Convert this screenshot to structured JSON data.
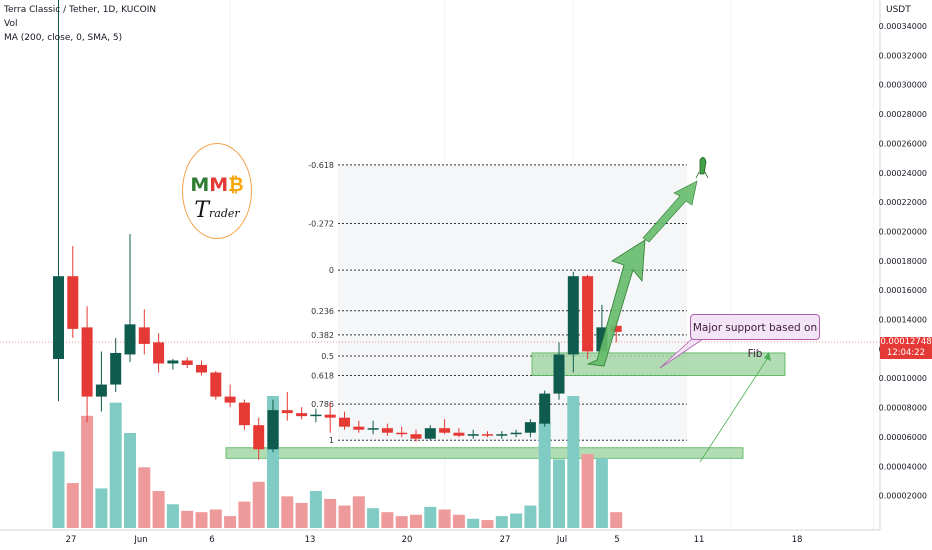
{
  "legend": {
    "symbol": "Terra Classic / Tether, 1D, KUCOIN",
    "volume": "Vol",
    "ma": "MA (200, close, 0, SMA, 5)"
  },
  "price_axis": {
    "title": "USDT",
    "current_price": "0.00012748",
    "countdown": "12:04:22"
  },
  "logo": {
    "line1_a": "M",
    "line1_b": "M",
    "line1_c": "₿",
    "line2_a": "T",
    "line2_b": "rader"
  },
  "annotation": {
    "text": "Major support based on Fib"
  },
  "colors": {
    "up": "#0f5c4e",
    "down": "#e53935",
    "vol_up": "#80cbc4",
    "vol_down": "#ef9a9a",
    "support": "#a5d6a7",
    "arrow": "#66bb6a"
  },
  "chart_data": {
    "type": "candlestick",
    "title": "Terra Classic / Tether, 1D, KUCOIN",
    "ylabel": "USDT",
    "ylim": [
      5e-07,
      3.6e-05
    ],
    "y_ticks": [
      "0.00034000",
      "0.00032000",
      "0.00030000",
      "0.00028000",
      "0.00026000",
      "0.00024000",
      "0.00022000",
      "0.00020000",
      "0.00018000",
      "0.00016000",
      "0.00014000",
      "0.00012000",
      "0.00010000",
      "0.00008000",
      "0.00006000",
      "0.00004000",
      "0.00002000"
    ],
    "x_ticks": [
      "27",
      "Jun",
      "6",
      "13",
      "20",
      "27",
      "Jul",
      "5",
      "11",
      "18"
    ],
    "candles": [
      {
        "o": 0.000107,
        "h": 0.000352,
        "l": 7.9e-05,
        "c": 0.000162
      },
      {
        "o": 0.000162,
        "h": 0.000182,
        "l": 0.000121,
        "c": 0.000127
      },
      {
        "o": 0.000128,
        "h": 0.000142,
        "l": 6.5e-05,
        "c": 8.2e-05
      },
      {
        "o": 8.2e-05,
        "h": 0.000112,
        "l": 7.2e-05,
        "c": 9e-05
      },
      {
        "o": 9e-05,
        "h": 0.000121,
        "l": 8.5e-05,
        "c": 0.000111
      },
      {
        "o": 0.00011,
        "h": 0.00019,
        "l": 0.000105,
        "c": 0.00013
      },
      {
        "o": 0.000128,
        "h": 0.00014,
        "l": 0.00011,
        "c": 0.000117
      },
      {
        "o": 0.000118,
        "h": 0.000124,
        "l": 9.8e-05,
        "c": 0.000104
      },
      {
        "o": 0.000104,
        "h": 0.000107,
        "l": 0.0001,
        "c": 0.000106
      },
      {
        "o": 0.000106,
        "h": 0.000108,
        "l": 0.000101,
        "c": 0.000103
      },
      {
        "o": 0.000103,
        "h": 0.000106,
        "l": 9.6e-05,
        "c": 9.8e-05
      },
      {
        "o": 9.8e-05,
        "h": 9.9e-05,
        "l": 8e-05,
        "c": 8.2e-05
      },
      {
        "o": 8.2e-05,
        "h": 9e-05,
        "l": 7.5e-05,
        "c": 7.8e-05
      },
      {
        "o": 7.8e-05,
        "h": 8e-05,
        "l": 6e-05,
        "c": 6.3e-05
      },
      {
        "o": 6.3e-05,
        "h": 6.8e-05,
        "l": 4e-05,
        "c": 4.7e-05
      },
      {
        "o": 4.7e-05,
        "h": 8e-05,
        "l": 4.5e-05,
        "c": 7.3e-05
      },
      {
        "o": 7.3e-05,
        "h": 8.5e-05,
        "l": 6.6e-05,
        "c": 7.1e-05
      },
      {
        "o": 7.1e-05,
        "h": 7.5e-05,
        "l": 6.7e-05,
        "c": 6.9e-05
      },
      {
        "o": 6.9e-05,
        "h": 7.4e-05,
        "l": 6.5e-05,
        "c": 7e-05
      },
      {
        "o": 7e-05,
        "h": 7.8e-05,
        "l": 5.8e-05,
        "c": 6.8e-05
      },
      {
        "o": 6.8e-05,
        "h": 7.2e-05,
        "l": 6e-05,
        "c": 6.2e-05
      },
      {
        "o": 6.2e-05,
        "h": 6.6e-05,
        "l": 5.8e-05,
        "c": 6e-05
      },
      {
        "o": 6e-05,
        "h": 6.6e-05,
        "l": 5.7e-05,
        "c": 6.1e-05
      },
      {
        "o": 6.1e-05,
        "h": 6.4e-05,
        "l": 5.6e-05,
        "c": 5.8e-05
      },
      {
        "o": 5.8e-05,
        "h": 6.2e-05,
        "l": 5.5e-05,
        "c": 5.7e-05
      },
      {
        "o": 5.7e-05,
        "h": 6e-05,
        "l": 5.2e-05,
        "c": 5.4e-05
      },
      {
        "o": 5.4e-05,
        "h": 6.3e-05,
        "l": 5.3e-05,
        "c": 6.1e-05
      },
      {
        "o": 6.1e-05,
        "h": 6.7e-05,
        "l": 5.7e-05,
        "c": 5.8e-05
      },
      {
        "o": 5.8e-05,
        "h": 6.1e-05,
        "l": 5.5e-05,
        "c": 5.6e-05
      },
      {
        "o": 5.6e-05,
        "h": 6e-05,
        "l": 5.4e-05,
        "c": 5.7e-05
      },
      {
        "o": 5.7e-05,
        "h": 5.9e-05,
        "l": 5.5e-05,
        "c": 5.6e-05
      },
      {
        "o": 5.6e-05,
        "h": 5.9e-05,
        "l": 5.4e-05,
        "c": 5.7e-05
      },
      {
        "o": 5.7e-05,
        "h": 6e-05,
        "l": 5.5e-05,
        "c": 5.8e-05
      },
      {
        "o": 5.8e-05,
        "h": 6.7e-05,
        "l": 5.5e-05,
        "c": 6.5e-05
      },
      {
        "o": 6.4e-05,
        "h": 8.6e-05,
        "l": 6.2e-05,
        "c": 8.4e-05
      },
      {
        "o": 8.4e-05,
        "h": 0.000118,
        "l": 8e-05,
        "c": 0.00011
      },
      {
        "o": 0.00011,
        "h": 0.000165,
        "l": 9.8e-05,
        "c": 0.000162
      },
      {
        "o": 0.000162,
        "h": 0.000163,
        "l": 0.000107,
        "c": 0.000112
      },
      {
        "o": 0.000112,
        "h": 0.000143,
        "l": 0.000108,
        "c": 0.000128
      },
      {
        "o": 0.000129,
        "h": 0.000133,
        "l": 0.000118,
        "c": 0.000125
      }
    ],
    "volume_panel": {
      "ylim": [
        0,
        100
      ],
      "values": [
        58,
        34,
        85,
        30,
        95,
        72,
        46,
        28,
        18,
        13,
        12,
        14,
        9,
        20,
        35,
        100,
        24,
        19,
        28,
        22,
        17,
        24,
        15,
        12,
        9,
        10,
        16,
        14,
        10,
        7,
        6,
        9,
        11,
        17,
        80,
        52,
        100,
        56,
        53,
        12
      ]
    },
    "fibonacci": [
      {
        "level": "-0.618",
        "price": 0.000236
      },
      {
        "level": "-0.272",
        "price": 0.000197
      },
      {
        "level": "0",
        "price": 0.000166
      },
      {
        "level": "0.236",
        "price": 0.000139
      },
      {
        "level": "0.382",
        "price": 0.000123
      },
      {
        "level": "0.5",
        "price": 0.000109
      },
      {
        "level": "0.618",
        "price": 9.6e-05
      },
      {
        "level": "0.786",
        "price": 7.7e-05
      },
      {
        "level": "1",
        "price": 5.3e-05
      }
    ],
    "support_zones": [
      {
        "label": "Major support based on Fib",
        "price_low": 9.6e-05,
        "price_high": 0.000111
      },
      {
        "price_low": 4.1e-05,
        "price_high": 4.8e-05
      }
    ]
  }
}
